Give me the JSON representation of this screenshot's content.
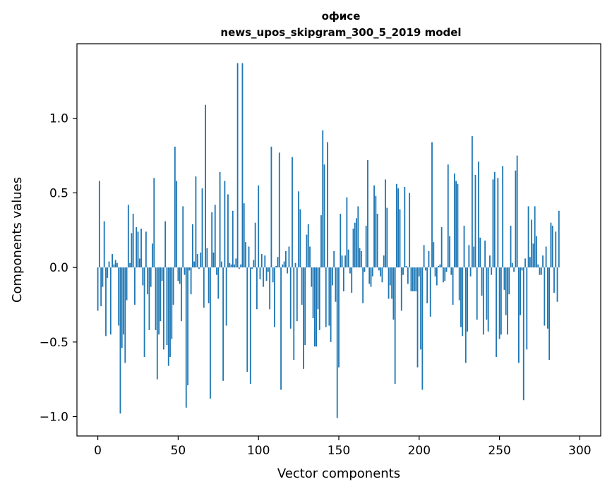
{
  "chart_data": {
    "type": "bar",
    "title": "офисе",
    "subtitle": "news_upos_skipgram_300_5_2019 model",
    "xlabel": "Vector components",
    "ylabel": "Components values",
    "xlim": [
      -13,
      313
    ],
    "ylim": [
      -1.13,
      1.5
    ],
    "xticks": [
      0,
      50,
      100,
      150,
      200,
      250,
      300
    ],
    "xtick_labels": [
      "0",
      "50",
      "100",
      "150",
      "200",
      "250",
      "300"
    ],
    "yticks": [
      -1.0,
      -0.5,
      0.0,
      0.5,
      1.0
    ],
    "ytick_labels": [
      "−1.0",
      "−0.5",
      "0.0",
      "0.5",
      "1.0"
    ],
    "grid": false,
    "bar_color": "#1f77b4",
    "values": [
      -0.29,
      0.58,
      -0.26,
      -0.13,
      0.31,
      -0.46,
      -0.07,
      0.04,
      -0.45,
      0.09,
      0.02,
      0.05,
      0.03,
      -0.39,
      -0.98,
      -0.54,
      -0.45,
      -0.64,
      -0.22,
      0.42,
      0.03,
      0.23,
      0.36,
      -0.25,
      0.27,
      0.24,
      0.06,
      0.26,
      -0.12,
      -0.6,
      0.24,
      -0.18,
      -0.42,
      -0.13,
      0.16,
      0.6,
      -0.42,
      -0.75,
      -0.45,
      -0.36,
      -0.09,
      -0.55,
      0.31,
      -0.52,
      -0.66,
      -0.6,
      -0.48,
      -0.25,
      0.81,
      0.58,
      -0.09,
      -0.11,
      -0.36,
      0.41,
      -0.05,
      -0.94,
      -0.79,
      -0.02,
      -0.18,
      0.29,
      0.04,
      0.61,
      0.09,
      -0.01,
      0.1,
      0.53,
      -0.27,
      1.09,
      0.13,
      -0.24,
      -0.88,
      0.37,
      0.1,
      0.42,
      -0.05,
      -0.21,
      0.64,
      0.04,
      -0.76,
      0.58,
      -0.39,
      0.49,
      0.03,
      0.02,
      0.38,
      0.02,
      0.06,
      1.37,
      -0.01,
      0.02,
      1.37,
      0.43,
      0.17,
      -0.7,
      0.14,
      -0.78,
      -0.01,
      0.05,
      0.3,
      -0.28,
      0.55,
      -0.08,
      0.09,
      -0.13,
      0.08,
      -0.09,
      -0.03,
      -0.28,
      0.81,
      -0.1,
      -0.4,
      0.01,
      0.07,
      0.77,
      -0.82,
      0.02,
      0.04,
      0.11,
      -0.04,
      0.14,
      -0.41,
      0.74,
      -0.62,
      0.03,
      -0.36,
      0.51,
      0.39,
      -0.25,
      -0.68,
      -0.52,
      0.22,
      0.29,
      0.14,
      -0.13,
      -0.34,
      -0.53,
      -0.53,
      -0.28,
      -0.42,
      0.35,
      0.92,
      0.69,
      -0.4,
      0.84,
      -0.39,
      -0.5,
      -0.12,
      0.11,
      -0.23,
      -1.01,
      -0.67,
      0.36,
      0.08,
      -0.16,
      0.08,
      0.47,
      0.12,
      -0.04,
      -0.17,
      0.26,
      0.3,
      0.33,
      0.41,
      0.13,
      0.11,
      -0.24,
      -0.03,
      0.28,
      0.72,
      -0.11,
      -0.13,
      -0.06,
      0.55,
      0.48,
      0.36,
      -0.02,
      -0.06,
      -0.1,
      0.08,
      0.59,
      0.4,
      -0.21,
      -0.12,
      -0.21,
      -0.35,
      -0.78,
      0.56,
      0.53,
      0.39,
      -0.29,
      -0.05,
      0.54,
      0.01,
      -0.11,
      0.5,
      -0.16,
      -0.16,
      -0.16,
      -0.16,
      -0.67,
      -0.06,
      -0.55,
      -0.82,
      0.15,
      -0.02,
      -0.24,
      0.11,
      -0.33,
      0.84,
      0.17,
      -0.06,
      -0.12,
      0.01,
      0.02,
      0.27,
      -0.1,
      -0.09,
      -0.03,
      0.69,
      0.21,
      -0.05,
      -0.25,
      0.63,
      0.58,
      0.56,
      -0.22,
      -0.4,
      -0.46,
      0.28,
      -0.64,
      -0.43,
      0.15,
      -0.06,
      0.88,
      0.14,
      0.62,
      -0.35,
      0.71,
      0.2,
      -0.19,
      -0.45,
      0.18,
      -0.35,
      -0.43,
      0.08,
      -0.05,
      0.59,
      0.64,
      -0.6,
      0.6,
      -0.48,
      -0.45,
      0.68,
      -0.15,
      -0.32,
      -0.45,
      -0.18,
      0.28,
      0.03,
      -0.03,
      0.65,
      0.75,
      -0.64,
      -0.32,
      -0.02,
      -0.89,
      0.06,
      -0.55,
      0.41,
      0.07,
      0.32,
      0.16,
      0.41,
      0.21,
      0.02,
      -0.05,
      -0.05,
      0.08,
      -0.39,
      0.14,
      -0.41,
      -0.62,
      0.3,
      0.28,
      -0.17,
      0.24,
      -0.23,
      0.38
    ]
  }
}
